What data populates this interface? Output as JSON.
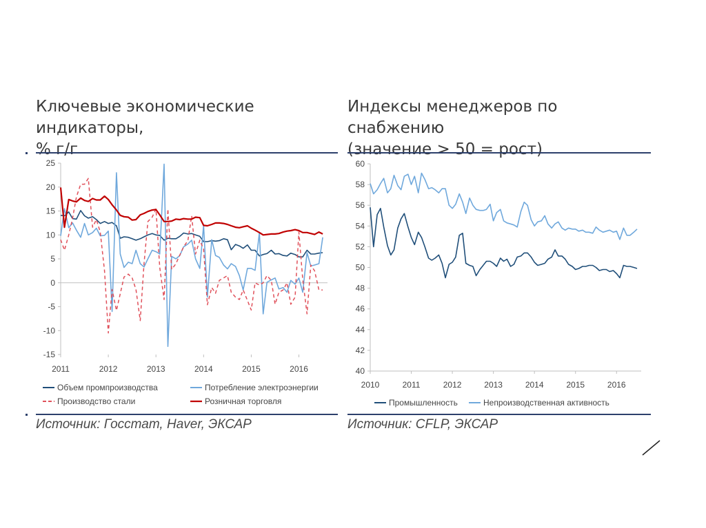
{
  "left_panel": {
    "title": "Ключевые экономические индикаторы,\n% г/г",
    "source": "Источник: Госстат, Haver, ЭКСАР"
  },
  "right_panel": {
    "title": "Индексы менеджеров по снабжению\n(значение > 50 = рост)",
    "source": "Источник: CFLP, ЭКСАР"
  },
  "colors": {
    "dark_blue": "#1f4e79",
    "light_blue": "#6fa8dc",
    "red": "#c00000",
    "red_dashed": "#e0505a",
    "rule": "#2c3f6b"
  },
  "chart_data": [
    {
      "type": "line",
      "x_ticks": [
        "2011",
        "2012",
        "2013",
        "2014",
        "2015",
        "2016"
      ],
      "x_range": [
        2011,
        2016.6
      ],
      "ylim": [
        -15,
        25
      ],
      "y_ticks": [
        "25",
        "20",
        "15",
        "10",
        "5",
        "0",
        "-5",
        "-10",
        "-15"
      ],
      "legend_position": "bottom",
      "series": [
        {
          "name": "Объем промпроизводства",
          "color": "#1f4e79",
          "style": "solid",
          "x": [
            2011.0,
            2011.08,
            2011.17,
            2011.25,
            2011.33,
            2011.42,
            2011.5,
            2011.58,
            2011.67,
            2011.75,
            2011.83,
            2011.92,
            2012.0,
            2012.08,
            2012.17,
            2012.25,
            2012.33,
            2012.42,
            2012.5,
            2012.58,
            2012.67,
            2012.75,
            2012.83,
            2012.92,
            2013.0,
            2013.08,
            2013.17,
            2013.25,
            2013.33,
            2013.42,
            2013.5,
            2013.58,
            2013.67,
            2013.75,
            2013.83,
            2013.92,
            2014.0,
            2014.08,
            2014.17,
            2014.25,
            2014.33,
            2014.42,
            2014.5,
            2014.58,
            2014.67,
            2014.75,
            2014.83,
            2014.92,
            2015.0,
            2015.08,
            2015.17,
            2015.25,
            2015.33,
            2015.42,
            2015.5,
            2015.58,
            2015.67,
            2015.75,
            2015.83,
            2015.92,
            2016.0,
            2016.08,
            2016.17,
            2016.25,
            2016.33,
            2016.42,
            2016.5
          ],
          "values": [
            14.1,
            14.0,
            14.8,
            13.4,
            13.3,
            15.1,
            14.0,
            13.5,
            13.8,
            13.2,
            12.4,
            12.8,
            12.4,
            12.6,
            11.9,
            9.3,
            9.6,
            9.5,
            9.2,
            8.9,
            9.2,
            9.6,
            10.0,
            10.3,
            10.0,
            9.9,
            8.9,
            9.3,
            9.2,
            9.2,
            9.7,
            10.4,
            10.2,
            10.3,
            10.0,
            9.7,
            8.6,
            8.6,
            8.8,
            8.7,
            8.8,
            9.2,
            9.0,
            6.9,
            8.0,
            7.7,
            7.2,
            7.9,
            6.8,
            6.8,
            5.6,
            5.9,
            6.1,
            6.8,
            6.0,
            6.1,
            5.7,
            5.6,
            6.2,
            5.9,
            5.4,
            5.4,
            6.8,
            6.0,
            6.0,
            6.2,
            6.3
          ]
        },
        {
          "name": "Потребление электроэнергии",
          "color": "#6fa8dc",
          "style": "solid",
          "x": [
            2011.0,
            2011.08,
            2011.17,
            2011.25,
            2011.33,
            2011.42,
            2011.5,
            2011.58,
            2011.67,
            2011.75,
            2011.83,
            2011.92,
            2012.0,
            2012.08,
            2012.17,
            2012.25,
            2012.33,
            2012.42,
            2012.5,
            2012.58,
            2012.67,
            2012.75,
            2012.83,
            2012.92,
            2013.0,
            2013.08,
            2013.17,
            2013.25,
            2013.33,
            2013.42,
            2013.5,
            2013.58,
            2013.67,
            2013.75,
            2013.83,
            2013.92,
            2014.0,
            2014.08,
            2014.17,
            2014.25,
            2014.33,
            2014.42,
            2014.5,
            2014.58,
            2014.67,
            2014.75,
            2014.83,
            2014.92,
            2015.0,
            2015.08,
            2015.17,
            2015.25,
            2015.33,
            2015.42,
            2015.5,
            2015.58,
            2015.67,
            2015.75,
            2015.83,
            2015.92,
            2016.0,
            2016.08,
            2016.17,
            2016.25,
            2016.33,
            2016.42,
            2016.5
          ],
          "values": [
            9.8,
            15.5,
            11.5,
            12.5,
            11.0,
            9.5,
            12.4,
            10.0,
            10.5,
            11.4,
            9.8,
            9.9,
            10.8,
            -6.0,
            23.0,
            6.0,
            3.2,
            4.3,
            4.0,
            6.8,
            4.0,
            3.3,
            5.0,
            6.8,
            6.5,
            6.0,
            24.8,
            -13.3,
            5.5,
            5.0,
            5.7,
            7.5,
            8.1,
            8.9,
            5.0,
            3.0,
            12.0,
            -3.0,
            9.0,
            5.7,
            5.3,
            3.7,
            2.9,
            4.0,
            3.4,
            1.5,
            -1.5,
            3.0,
            3.0,
            2.6,
            10.5,
            -6.5,
            0.1,
            0.6,
            1.0,
            -1.3,
            -1.0,
            -2.0,
            0.5,
            -0.3,
            1.0,
            -2.0,
            6.3,
            3.5,
            3.7,
            4.0,
            9.5
          ]
        },
        {
          "name": "Производство стали",
          "color": "#e0505a",
          "style": "dashed",
          "x": [
            2011.0,
            2011.08,
            2011.17,
            2011.25,
            2011.33,
            2011.42,
            2011.5,
            2011.58,
            2011.67,
            2011.75,
            2011.83,
            2011.92,
            2012.0,
            2012.08,
            2012.17,
            2012.25,
            2012.33,
            2012.42,
            2012.5,
            2012.58,
            2012.67,
            2012.75,
            2012.83,
            2012.92,
            2013.0,
            2013.08,
            2013.17,
            2013.25,
            2013.33,
            2013.42,
            2013.5,
            2013.58,
            2013.67,
            2013.75,
            2013.83,
            2013.92,
            2014.0,
            2014.08,
            2014.17,
            2014.25,
            2014.33,
            2014.42,
            2014.5,
            2014.58,
            2014.67,
            2014.75,
            2014.83,
            2014.92,
            2015.0,
            2015.08,
            2015.17,
            2015.25,
            2015.33,
            2015.42,
            2015.5,
            2015.58,
            2015.67,
            2015.75,
            2015.83,
            2015.92,
            2016.0,
            2016.08,
            2016.17,
            2016.25,
            2016.33,
            2016.42,
            2016.5
          ],
          "values": [
            9.0,
            6.8,
            10.0,
            13.5,
            17.9,
            20.6,
            20.6,
            21.8,
            11.6,
            13.2,
            10.6,
            2.5,
            -10.5,
            -1.4,
            -5.8,
            -2.3,
            1.2,
            1.8,
            1.0,
            -1.4,
            -7.9,
            4.0,
            12.8,
            13.7,
            15.4,
            3.2,
            -3.5,
            15.4,
            2.8,
            4.0,
            5.8,
            7.5,
            8.8,
            14.0,
            6.0,
            8.9,
            7.0,
            -4.6,
            -1.0,
            -2.2,
            0.5,
            1.0,
            1.5,
            -2.0,
            -3.0,
            -3.5,
            -1.5,
            -3.7,
            -5.7,
            0.0,
            -0.5,
            0.0,
            1.5,
            0.5,
            -4.5,
            -2.0,
            -1.5,
            0.0,
            -4.5,
            -3.0,
            10.6,
            0.7,
            -6.5,
            3.7,
            2.5,
            -1.5,
            -1.5
          ]
        },
        {
          "name": "Розничная торговля",
          "color": "#c00000",
          "style": "solid",
          "x": [
            2011.0,
            2011.08,
            2011.17,
            2011.25,
            2011.33,
            2011.42,
            2011.5,
            2011.58,
            2011.67,
            2011.75,
            2011.83,
            2011.92,
            2012.0,
            2012.08,
            2012.17,
            2012.25,
            2012.33,
            2012.42,
            2012.5,
            2012.58,
            2012.67,
            2012.75,
            2012.83,
            2012.92,
            2013.0,
            2013.08,
            2013.17,
            2013.25,
            2013.33,
            2013.42,
            2013.5,
            2013.58,
            2013.67,
            2013.75,
            2013.83,
            2013.92,
            2014.0,
            2014.08,
            2014.17,
            2014.25,
            2014.33,
            2014.42,
            2014.5,
            2014.58,
            2014.67,
            2014.75,
            2014.83,
            2014.92,
            2015.0,
            2015.08,
            2015.17,
            2015.25,
            2015.33,
            2015.42,
            2015.5,
            2015.58,
            2015.67,
            2015.75,
            2015.83,
            2015.92,
            2016.0,
            2016.08,
            2016.17,
            2016.25,
            2016.33,
            2016.42,
            2016.5
          ],
          "values": [
            19.9,
            11.6,
            17.4,
            17.1,
            16.9,
            17.7,
            17.2,
            17.0,
            17.6,
            17.3,
            17.3,
            18.1,
            17.4,
            16.3,
            15.2,
            14.1,
            13.8,
            13.7,
            13.1,
            13.2,
            14.2,
            14.5,
            14.9,
            15.2,
            15.3,
            14.2,
            12.8,
            12.8,
            12.9,
            13.3,
            13.2,
            13.4,
            13.3,
            13.3,
            13.7,
            13.6,
            12.0,
            11.9,
            12.2,
            12.5,
            12.5,
            12.4,
            12.2,
            11.9,
            11.6,
            11.5,
            11.7,
            11.9,
            11.4,
            11.0,
            10.5,
            10.0,
            10.1,
            10.2,
            10.2,
            10.3,
            10.6,
            10.8,
            10.9,
            11.1,
            10.9,
            10.5,
            10.5,
            10.3,
            10.1,
            10.6,
            10.2
          ]
        }
      ]
    },
    {
      "type": "line",
      "x_ticks": [
        "2010",
        "2011",
        "2012",
        "2013",
        "2014",
        "2015",
        "2016"
      ],
      "x_range": [
        2010,
        2016.6
      ],
      "ylim": [
        40,
        60
      ],
      "y_ticks": [
        "60",
        "58",
        "56",
        "54",
        "52",
        "50",
        "48",
        "46",
        "44",
        "42",
        "40"
      ],
      "legend_position": "bottom",
      "series": [
        {
          "name": "Промышленность",
          "color": "#1f4e79",
          "style": "solid",
          "x": [
            2010.0,
            2010.08,
            2010.17,
            2010.25,
            2010.33,
            2010.42,
            2010.5,
            2010.58,
            2010.67,
            2010.75,
            2010.83,
            2010.92,
            2011.0,
            2011.08,
            2011.17,
            2011.25,
            2011.33,
            2011.42,
            2011.5,
            2011.58,
            2011.67,
            2011.75,
            2011.83,
            2011.92,
            2012.0,
            2012.08,
            2012.17,
            2012.25,
            2012.33,
            2012.42,
            2012.5,
            2012.58,
            2012.67,
            2012.75,
            2012.83,
            2012.92,
            2013.0,
            2013.08,
            2013.17,
            2013.25,
            2013.33,
            2013.42,
            2013.5,
            2013.58,
            2013.67,
            2013.75,
            2013.83,
            2013.92,
            2014.0,
            2014.08,
            2014.17,
            2014.25,
            2014.33,
            2014.42,
            2014.5,
            2014.58,
            2014.67,
            2014.75,
            2014.83,
            2014.92,
            2015.0,
            2015.08,
            2015.17,
            2015.25,
            2015.33,
            2015.42,
            2015.5,
            2015.58,
            2015.67,
            2015.75,
            2015.83,
            2015.92,
            2016.0,
            2016.08,
            2016.17,
            2016.25,
            2016.33,
            2016.42,
            2016.5
          ],
          "values": [
            55.8,
            52.0,
            55.1,
            55.7,
            53.9,
            52.1,
            51.2,
            51.7,
            53.8,
            54.7,
            55.2,
            53.9,
            52.9,
            52.2,
            53.4,
            52.9,
            52.0,
            50.9,
            50.7,
            50.9,
            51.2,
            50.4,
            49.0,
            50.3,
            50.5,
            51.0,
            53.1,
            53.3,
            50.4,
            50.2,
            50.1,
            49.2,
            49.8,
            50.2,
            50.6,
            50.6,
            50.4,
            50.1,
            50.9,
            50.6,
            50.8,
            50.1,
            50.3,
            51.0,
            51.1,
            51.4,
            51.4,
            51.0,
            50.5,
            50.2,
            50.3,
            50.4,
            50.8,
            51.0,
            51.7,
            51.1,
            51.1,
            50.8,
            50.3,
            50.1,
            49.8,
            49.9,
            50.1,
            50.1,
            50.2,
            50.2,
            50.0,
            49.7,
            49.8,
            49.8,
            49.6,
            49.7,
            49.4,
            49.0,
            50.2,
            50.1,
            50.1,
            50.0,
            49.9
          ]
        },
        {
          "name": "Непроизводственная активность",
          "color": "#6fa8dc",
          "style": "solid",
          "x": [
            2010.0,
            2010.08,
            2010.17,
            2010.25,
            2010.33,
            2010.42,
            2010.5,
            2010.58,
            2010.67,
            2010.75,
            2010.83,
            2010.92,
            2011.0,
            2011.08,
            2011.17,
            2011.25,
            2011.33,
            2011.42,
            2011.5,
            2011.58,
            2011.67,
            2011.75,
            2011.83,
            2011.92,
            2012.0,
            2012.08,
            2012.17,
            2012.25,
            2012.33,
            2012.42,
            2012.5,
            2012.58,
            2012.67,
            2012.75,
            2012.83,
            2012.92,
            2013.0,
            2013.08,
            2013.17,
            2013.25,
            2013.33,
            2013.42,
            2013.5,
            2013.58,
            2013.67,
            2013.75,
            2013.83,
            2013.92,
            2014.0,
            2014.08,
            2014.17,
            2014.25,
            2014.33,
            2014.42,
            2014.5,
            2014.58,
            2014.67,
            2014.75,
            2014.83,
            2014.92,
            2015.0,
            2015.08,
            2015.17,
            2015.25,
            2015.33,
            2015.42,
            2015.5,
            2015.58,
            2015.67,
            2015.75,
            2015.83,
            2015.92,
            2016.0,
            2016.08,
            2016.17,
            2016.25,
            2016.33,
            2016.42,
            2016.5
          ],
          "values": [
            58.1,
            57.1,
            57.5,
            58.1,
            58.6,
            57.2,
            57.6,
            58.9,
            57.9,
            57.5,
            58.8,
            59.0,
            58.0,
            58.8,
            57.2,
            59.1,
            58.5,
            57.6,
            57.7,
            57.5,
            57.2,
            57.6,
            57.6,
            56.0,
            55.7,
            56.1,
            57.1,
            56.3,
            55.2,
            56.7,
            56.0,
            55.6,
            55.5,
            55.5,
            55.6,
            56.1,
            54.5,
            55.3,
            55.6,
            54.5,
            54.3,
            54.2,
            54.1,
            53.9,
            55.4,
            56.3,
            56.0,
            54.6,
            54.0,
            54.4,
            54.5,
            55.0,
            54.2,
            53.8,
            54.2,
            54.4,
            53.8,
            53.6,
            53.8,
            53.7,
            53.7,
            53.5,
            53.6,
            53.4,
            53.4,
            53.3,
            53.9,
            53.6,
            53.4,
            53.5,
            53.6,
            53.4,
            53.5,
            52.7,
            53.8,
            53.1,
            53.1,
            53.4,
            53.7
          ]
        }
      ]
    }
  ]
}
